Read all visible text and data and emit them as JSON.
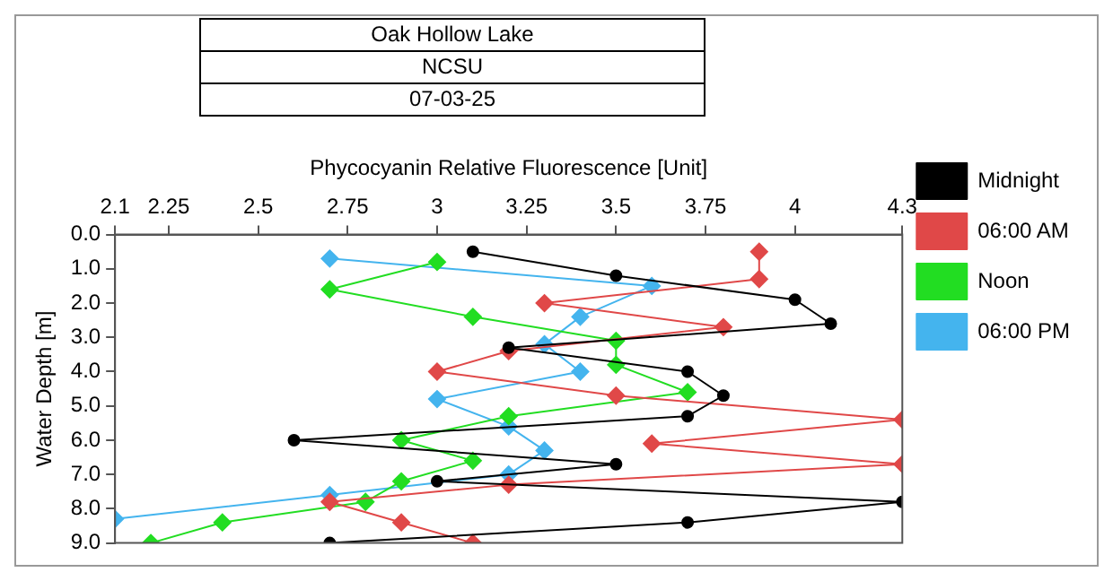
{
  "chart_data": {
    "type": "line",
    "title": "Oak Hollow Lake",
    "subtitle": "NCSU",
    "annotations": [
      "07-03-25"
    ],
    "xlabel": "Phycocyanin Relative Fluorescence [Unit]",
    "ylabel": "Water Depth [m]",
    "xlim": [
      2.1,
      4.3
    ],
    "xticks": [
      2.1,
      2.25,
      2.5,
      2.75,
      3,
      3.25,
      3.5,
      3.75,
      4,
      4.3
    ],
    "ylim": [
      9,
      0
    ],
    "yticks": [
      {
        "value": 0,
        "label": "0.0"
      },
      {
        "value": 1,
        "label": "1.0"
      },
      {
        "value": 2,
        "label": "2.0"
      },
      {
        "value": 3,
        "label": "3.0"
      },
      {
        "value": 4,
        "label": "4.0"
      },
      {
        "value": 5,
        "label": "5.0"
      },
      {
        "value": 6,
        "label": "6.0"
      },
      {
        "value": 7,
        "label": "7.0"
      },
      {
        "value": 8,
        "label": "8.0"
      },
      {
        "value": 9,
        "label": "9.0"
      }
    ],
    "grid": false,
    "legend": "top right",
    "line_style": "solid",
    "series": [
      {
        "name": "Midnight",
        "color": "#000000",
        "marker": "circle",
        "x": [
          3.1,
          3.5,
          4.0,
          4.1,
          3.2,
          3.7,
          3.8,
          3.7,
          2.6,
          3.5,
          3.0,
          4.3,
          3.7,
          2.7
        ],
        "values": [
          0.5,
          1.2,
          1.9,
          2.6,
          3.3,
          4.0,
          4.7,
          5.3,
          6.0,
          6.7,
          7.2,
          7.8,
          8.4,
          9.0
        ]
      },
      {
        "name": "06:00 AM",
        "color": "#e04848",
        "marker": "diamond",
        "x": [
          3.9,
          3.9,
          3.3,
          3.8,
          3.2,
          3.0,
          3.5,
          4.3,
          3.6,
          4.3,
          3.2,
          2.7,
          2.9,
          3.1
        ],
        "values": [
          0.5,
          1.3,
          2.0,
          2.7,
          3.4,
          4.0,
          4.7,
          5.4,
          6.1,
          6.7,
          7.3,
          7.8,
          8.4,
          9.0
        ]
      },
      {
        "name": "Noon",
        "color": "#22dd22",
        "marker": "diamond",
        "x": [
          3.0,
          2.7,
          3.1,
          3.5,
          3.5,
          3.7,
          3.2,
          2.9,
          3.1,
          2.9,
          2.8,
          2.4,
          2.2
        ],
        "values": [
          0.8,
          1.6,
          2.4,
          3.1,
          3.8,
          4.6,
          5.3,
          6.0,
          6.6,
          7.2,
          7.8,
          8.4,
          9.0
        ]
      },
      {
        "name": "06:00 PM",
        "color": "#44b4ee",
        "marker": "diamond",
        "x": [
          2.7,
          3.6,
          3.4,
          3.3,
          3.4,
          3.0,
          3.2,
          3.3,
          3.2,
          2.7,
          2.1
        ],
        "values": [
          0.7,
          1.5,
          2.4,
          3.2,
          4.0,
          4.8,
          5.6,
          6.3,
          7.0,
          7.6,
          8.3
        ]
      }
    ]
  }
}
